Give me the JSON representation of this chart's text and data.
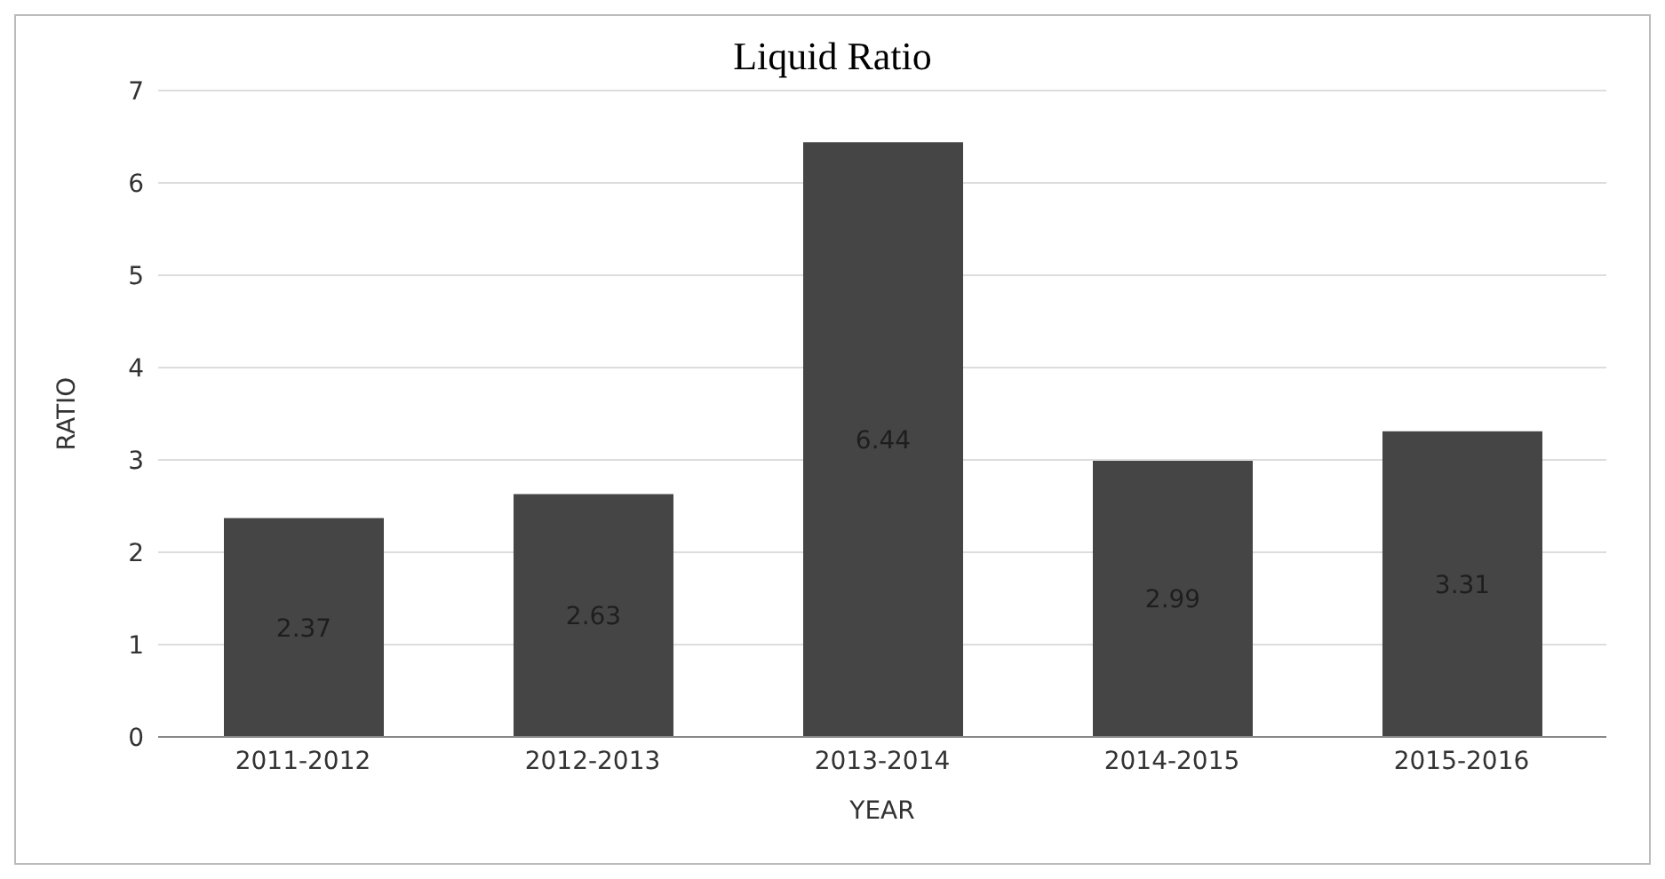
{
  "chart_data": {
    "type": "bar",
    "title": "Liquid Ratio",
    "xlabel": "YEAR",
    "ylabel": "RATIO",
    "categories": [
      "2011-2012",
      "2012-2013",
      "2013-2014",
      "2014-2015",
      "2015-2016"
    ],
    "values": [
      2.37,
      2.63,
      6.44,
      2.99,
      3.31
    ],
    "color": "#454545",
    "ylim": [
      0,
      7
    ],
    "yticks": [
      0,
      1,
      2,
      3,
      4,
      5,
      6,
      7
    ],
    "grid": "y",
    "data_labels": true
  }
}
